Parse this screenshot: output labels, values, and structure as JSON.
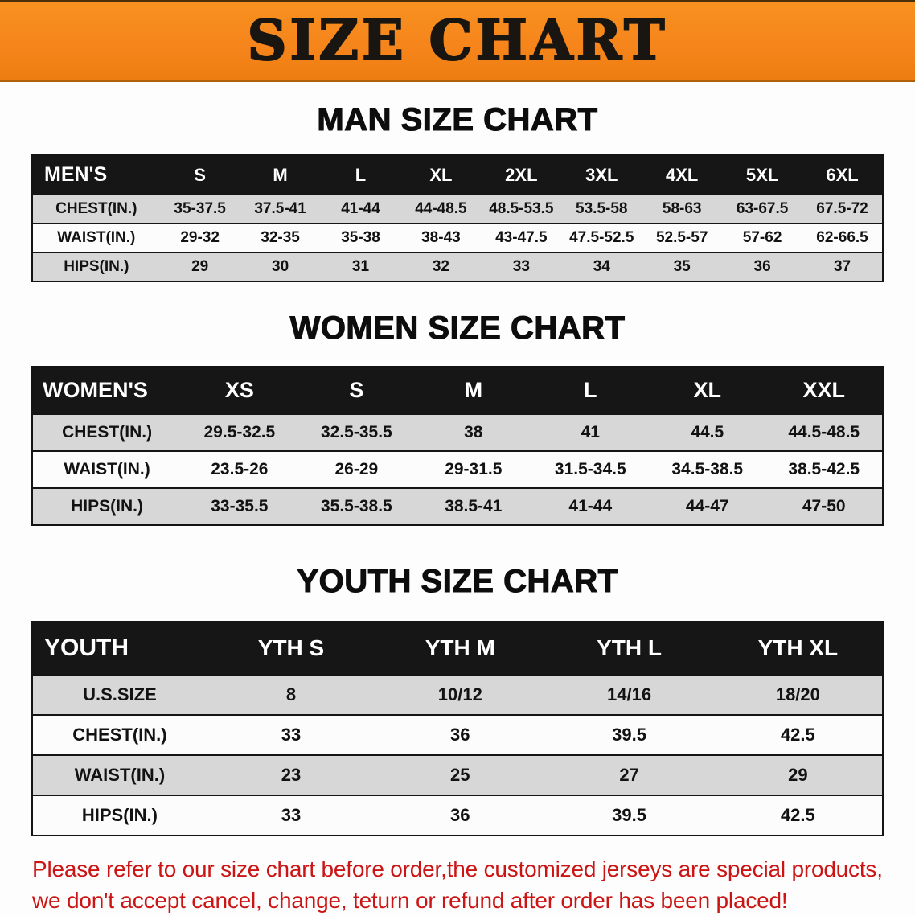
{
  "banner": {
    "title": "SIZE CHART"
  },
  "colors": {
    "banner_orange": "#F6851C",
    "header_black": "#161616",
    "stripe_gray": "#D7D7D7",
    "disclaimer_red": "#CB1414"
  },
  "sections": [
    {
      "heading": "MAN SIZE CHART",
      "table": {
        "header": [
          "MEN'S",
          "S",
          "M",
          "L",
          "XL",
          "2XL",
          "3XL",
          "4XL",
          "5XL",
          "6XL"
        ],
        "rows": [
          [
            "CHEST(IN.)",
            "35-37.5",
            "37.5-41",
            "41-44",
            "44-48.5",
            "48.5-53.5",
            "53.5-58",
            "58-63",
            "63-67.5",
            "67.5-72"
          ],
          [
            "WAIST(IN.)",
            "29-32",
            "32-35",
            "35-38",
            "38-43",
            "43-47.5",
            "47.5-52.5",
            "52.5-57",
            "57-62",
            "62-66.5"
          ],
          [
            "HIPS(IN.)",
            "29",
            "30",
            "31",
            "32",
            "33",
            "34",
            "35",
            "36",
            "37"
          ]
        ]
      }
    },
    {
      "heading": "WOMEN SIZE CHART",
      "table": {
        "header": [
          "WOMEN'S",
          "XS",
          "S",
          "M",
          "L",
          "XL",
          "XXL"
        ],
        "rows": [
          [
            "CHEST(IN.)",
            "29.5-32.5",
            "32.5-35.5",
            "38",
            "41",
            "44.5",
            "44.5-48.5"
          ],
          [
            "WAIST(IN.)",
            "23.5-26",
            "26-29",
            "29-31.5",
            "31.5-34.5",
            "34.5-38.5",
            "38.5-42.5"
          ],
          [
            "HIPS(IN.)",
            "33-35.5",
            "35.5-38.5",
            "38.5-41",
            "41-44",
            "44-47",
            "47-50"
          ]
        ]
      }
    },
    {
      "heading": "YOUTH SIZE CHART",
      "table": {
        "header": [
          "YOUTH",
          "YTH S",
          "YTH M",
          "YTH L",
          "YTH XL"
        ],
        "rows": [
          [
            "U.S.SIZE",
            "8",
            "10/12",
            "14/16",
            "18/20"
          ],
          [
            "CHEST(IN.)",
            "33",
            "36",
            "39.5",
            "42.5"
          ],
          [
            "WAIST(IN.)",
            "23",
            "25",
            "27",
            "29"
          ],
          [
            "HIPS(IN.)",
            "33",
            "36",
            "39.5",
            "42.5"
          ]
        ]
      }
    }
  ],
  "footer": {
    "line1": "Please refer to our size chart before order,the customized jerseys are special products,",
    "line2": "we don't accept cancel, change, teturn or refund after order has been placed!"
  }
}
